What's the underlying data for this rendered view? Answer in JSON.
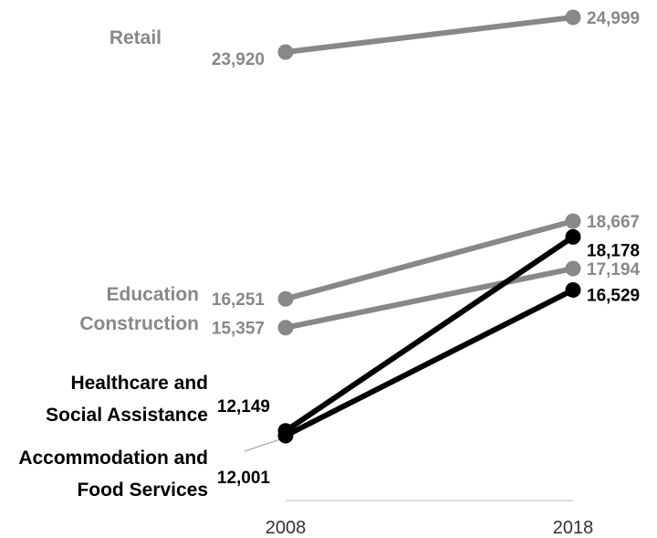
{
  "chart_data": {
    "type": "line",
    "x": [
      "2008",
      "2018"
    ],
    "series": [
      {
        "name": "Retail",
        "label_lines": [
          "Retail"
        ],
        "values": [
          23920,
          24999
        ],
        "value_labels": [
          "23,920",
          "24,999"
        ],
        "color": "#888888"
      },
      {
        "name": "Education",
        "label_lines": [
          "Education"
        ],
        "values": [
          16251,
          18667
        ],
        "value_labels": [
          "16,251",
          "18,667"
        ],
        "color": "#888888"
      },
      {
        "name": "Construction",
        "label_lines": [
          "Construction"
        ],
        "values": [
          15357,
          17194
        ],
        "value_labels": [
          "15,357",
          "17,194"
        ],
        "color": "#888888"
      },
      {
        "name": "Healthcare and Social Assistance",
        "label_lines": [
          "Healthcare and",
          "Social Assistance"
        ],
        "values": [
          12149,
          18178
        ],
        "value_labels": [
          "12,149",
          "18,178"
        ],
        "color": "#000000"
      },
      {
        "name": "Accommodation and Food Services",
        "label_lines": [
          "Accommodation and",
          "Food Services"
        ],
        "values": [
          12001,
          16529
        ],
        "value_labels": [
          "12,001",
          "16,529"
        ],
        "color": "#000000"
      }
    ],
    "title": "",
    "xlabel": "",
    "ylabel": "",
    "grid": false,
    "axis_color": "#dddddd"
  }
}
